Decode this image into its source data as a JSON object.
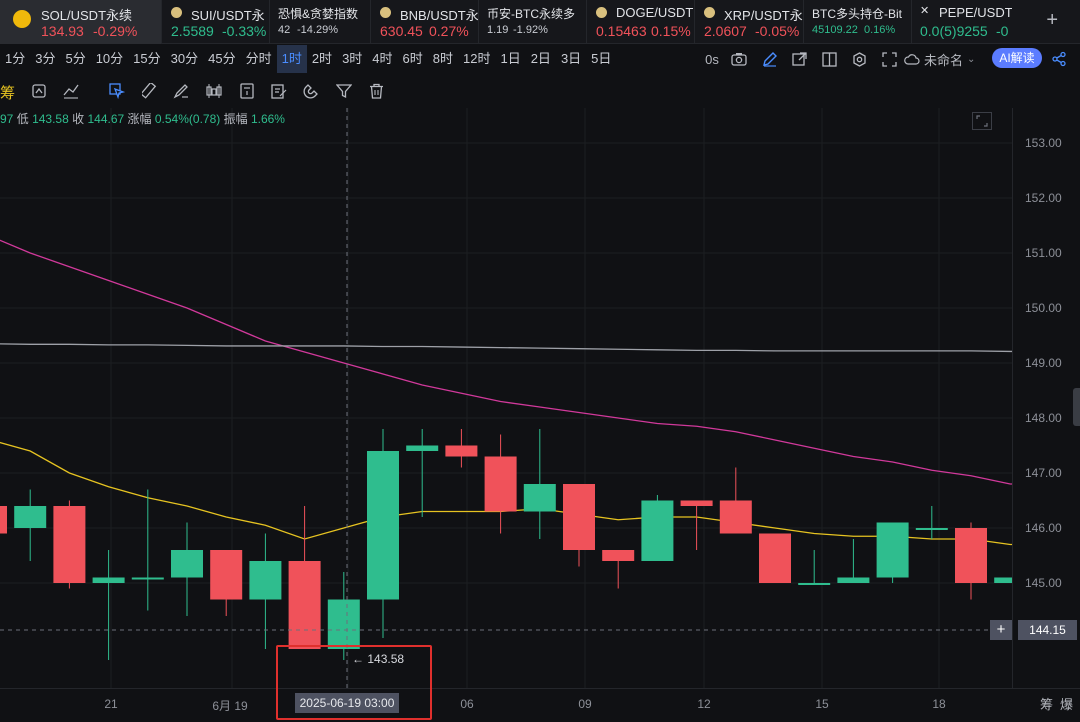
{
  "tickers": [
    {
      "name": "SOL/USDT永续",
      "price": "134.93",
      "change": "-0.29%",
      "dir": "down",
      "icon": "binance-logo-icon",
      "active": true
    },
    {
      "name": "SUI/USDT永",
      "price": "2.5589",
      "change": "-0.33%",
      "dir": "up",
      "icon": "sui-icon"
    },
    {
      "name": "恐惧&贪婪指数",
      "price": "42",
      "change": "-14.29%",
      "dir": "neutral",
      "icon": ""
    },
    {
      "name": "BNB/USDT永",
      "price": "630.45",
      "change": "0.27%",
      "dir": "down",
      "icon": "bnb-icon"
    },
    {
      "name": "币安-BTC永续多",
      "price": "1.19",
      "change": "-1.92%",
      "dir": "neutral",
      "icon": ""
    },
    {
      "name": "DOGE/USDT",
      "price": "0.15463",
      "change": "0.15%",
      "dir": "down",
      "icon": "doge-icon"
    },
    {
      "name": "XRP/USDT永",
      "price": "2.0607",
      "change": "-0.05%",
      "dir": "down",
      "icon": "xrp-icon"
    },
    {
      "name": "BTC多头持仓-Bit",
      "price": "45109.22",
      "change": "0.16%",
      "dir": "up",
      "icon": ""
    },
    {
      "name": "PEPE/USDT",
      "price": "0.0(5)9255",
      "change": "-0",
      "dir": "up",
      "icon": "pepe-icon"
    }
  ],
  "intervals": [
    "1分",
    "3分",
    "5分",
    "10分",
    "15分",
    "30分",
    "45分",
    "分时",
    "1时",
    "2时",
    "3时",
    "4时",
    "6时",
    "8时",
    "12时",
    "1日",
    "2日",
    "3日",
    "5日"
  ],
  "active_interval": "1时",
  "toolbar_right": {
    "zero_label": "0s",
    "layout_name": "未命名",
    "ai_label": "AI解读"
  },
  "tool_left_label": "筹",
  "ohlc": {
    "lead": "97",
    "low_label": "低",
    "low": "143.58",
    "close_label": "收",
    "close": "144.67",
    "chg_label": "涨幅",
    "chg": "0.54%(0.78)",
    "amp_label": "振幅",
    "amp": "1.66%"
  },
  "cursor": {
    "date": "2025-06-19 03:00",
    "price": "144.15",
    "low_marker": "143.58"
  },
  "price_ticks": [
    "153.00",
    "152.00",
    "151.00",
    "150.00",
    "149.00",
    "148.00",
    "147.00",
    "146.00",
    "145.00"
  ],
  "time_ticks": [
    "21",
    "6月 19",
    "06",
    "09",
    "12",
    "15",
    "18"
  ],
  "bottom_right": [
    "筹",
    "爆"
  ],
  "colors": {
    "up": "#2fbd8e",
    "down": "#f0525a",
    "ma_short": "#e6c321",
    "ma_long": "#d1399b",
    "ma_flat": "#9ea1a8"
  },
  "chart_data": {
    "type": "candlestick",
    "ylim": [
      143.3,
      153.6
    ],
    "candles": [
      {
        "o": 146.4,
        "h": 146.5,
        "l": 145.9,
        "c": 145.9
      },
      {
        "o": 146.0,
        "h": 146.7,
        "l": 145.4,
        "c": 146.4
      },
      {
        "o": 146.4,
        "h": 146.5,
        "l": 144.9,
        "c": 145.0
      },
      {
        "o": 145.0,
        "h": 145.6,
        "l": 143.6,
        "c": 145.1
      },
      {
        "o": 145.1,
        "h": 146.7,
        "l": 144.5,
        "c": 145.1
      },
      {
        "o": 145.1,
        "h": 146.1,
        "l": 144.4,
        "c": 145.6
      },
      {
        "o": 145.6,
        "h": 145.6,
        "l": 144.4,
        "c": 144.7
      },
      {
        "o": 144.7,
        "h": 145.9,
        "l": 143.8,
        "c": 145.4
      },
      {
        "o": 145.4,
        "h": 146.4,
        "l": 143.9,
        "c": 143.8
      },
      {
        "o": 143.8,
        "h": 145.2,
        "l": 143.6,
        "c": 144.7
      },
      {
        "o": 144.7,
        "h": 147.8,
        "l": 144.0,
        "c": 147.4
      },
      {
        "o": 147.4,
        "h": 147.8,
        "l": 146.2,
        "c": 147.5
      },
      {
        "o": 147.5,
        "h": 147.8,
        "l": 147.1,
        "c": 147.3
      },
      {
        "o": 147.3,
        "h": 147.7,
        "l": 145.9,
        "c": 146.3
      },
      {
        "o": 146.3,
        "h": 147.8,
        "l": 145.8,
        "c": 146.8
      },
      {
        "o": 146.8,
        "h": 146.8,
        "l": 145.3,
        "c": 145.6
      },
      {
        "o": 145.6,
        "h": 145.6,
        "l": 144.9,
        "c": 145.4
      },
      {
        "o": 145.4,
        "h": 146.6,
        "l": 145.4,
        "c": 146.5
      },
      {
        "o": 146.5,
        "h": 146.5,
        "l": 145.6,
        "c": 146.4
      },
      {
        "o": 146.5,
        "h": 147.1,
        "l": 145.9,
        "c": 145.9
      },
      {
        "o": 145.9,
        "h": 145.9,
        "l": 145.0,
        "c": 145.0
      },
      {
        "o": 145.0,
        "h": 145.6,
        "l": 145.0,
        "c": 145.0
      },
      {
        "o": 145.0,
        "h": 145.8,
        "l": 145.0,
        "c": 145.1
      },
      {
        "o": 145.1,
        "h": 146.1,
        "l": 145.0,
        "c": 146.1
      },
      {
        "o": 146.0,
        "h": 146.4,
        "l": 145.8,
        "c": 146.0
      },
      {
        "o": 146.0,
        "h": 146.1,
        "l": 144.7,
        "c": 145.0
      },
      {
        "o": 145.0,
        "h": 145.1,
        "l": 145.0,
        "c": 145.1
      }
    ],
    "ma_short": [
      147.6,
      147.4,
      147.0,
      146.75,
      146.55,
      146.4,
      146.2,
      146.05,
      145.8,
      146.0,
      146.2,
      146.3,
      146.3,
      146.3,
      146.35,
      146.25,
      146.15,
      146.2,
      146.2,
      146.1,
      146.0,
      145.9,
      145.85,
      145.85,
      145.8,
      145.8,
      145.7
    ],
    "ma_long": [
      151.3,
      151.0,
      150.75,
      150.5,
      150.25,
      150.0,
      149.7,
      149.4,
      149.2,
      149.0,
      148.8,
      148.6,
      148.45,
      148.3,
      148.2,
      148.1,
      148.0,
      147.9,
      147.85,
      147.75,
      147.6,
      147.45,
      147.3,
      147.2,
      147.05,
      146.95,
      146.8
    ],
    "ma_flat": [
      149.35,
      149.34,
      149.34,
      149.33,
      149.33,
      149.32,
      149.31,
      149.31,
      149.31,
      149.31,
      149.3,
      149.3,
      149.29,
      149.28,
      149.27,
      149.26,
      149.25,
      149.24,
      149.23,
      149.23,
      149.22,
      149.22,
      149.22,
      149.22,
      149.22,
      149.22,
      149.21
    ]
  }
}
